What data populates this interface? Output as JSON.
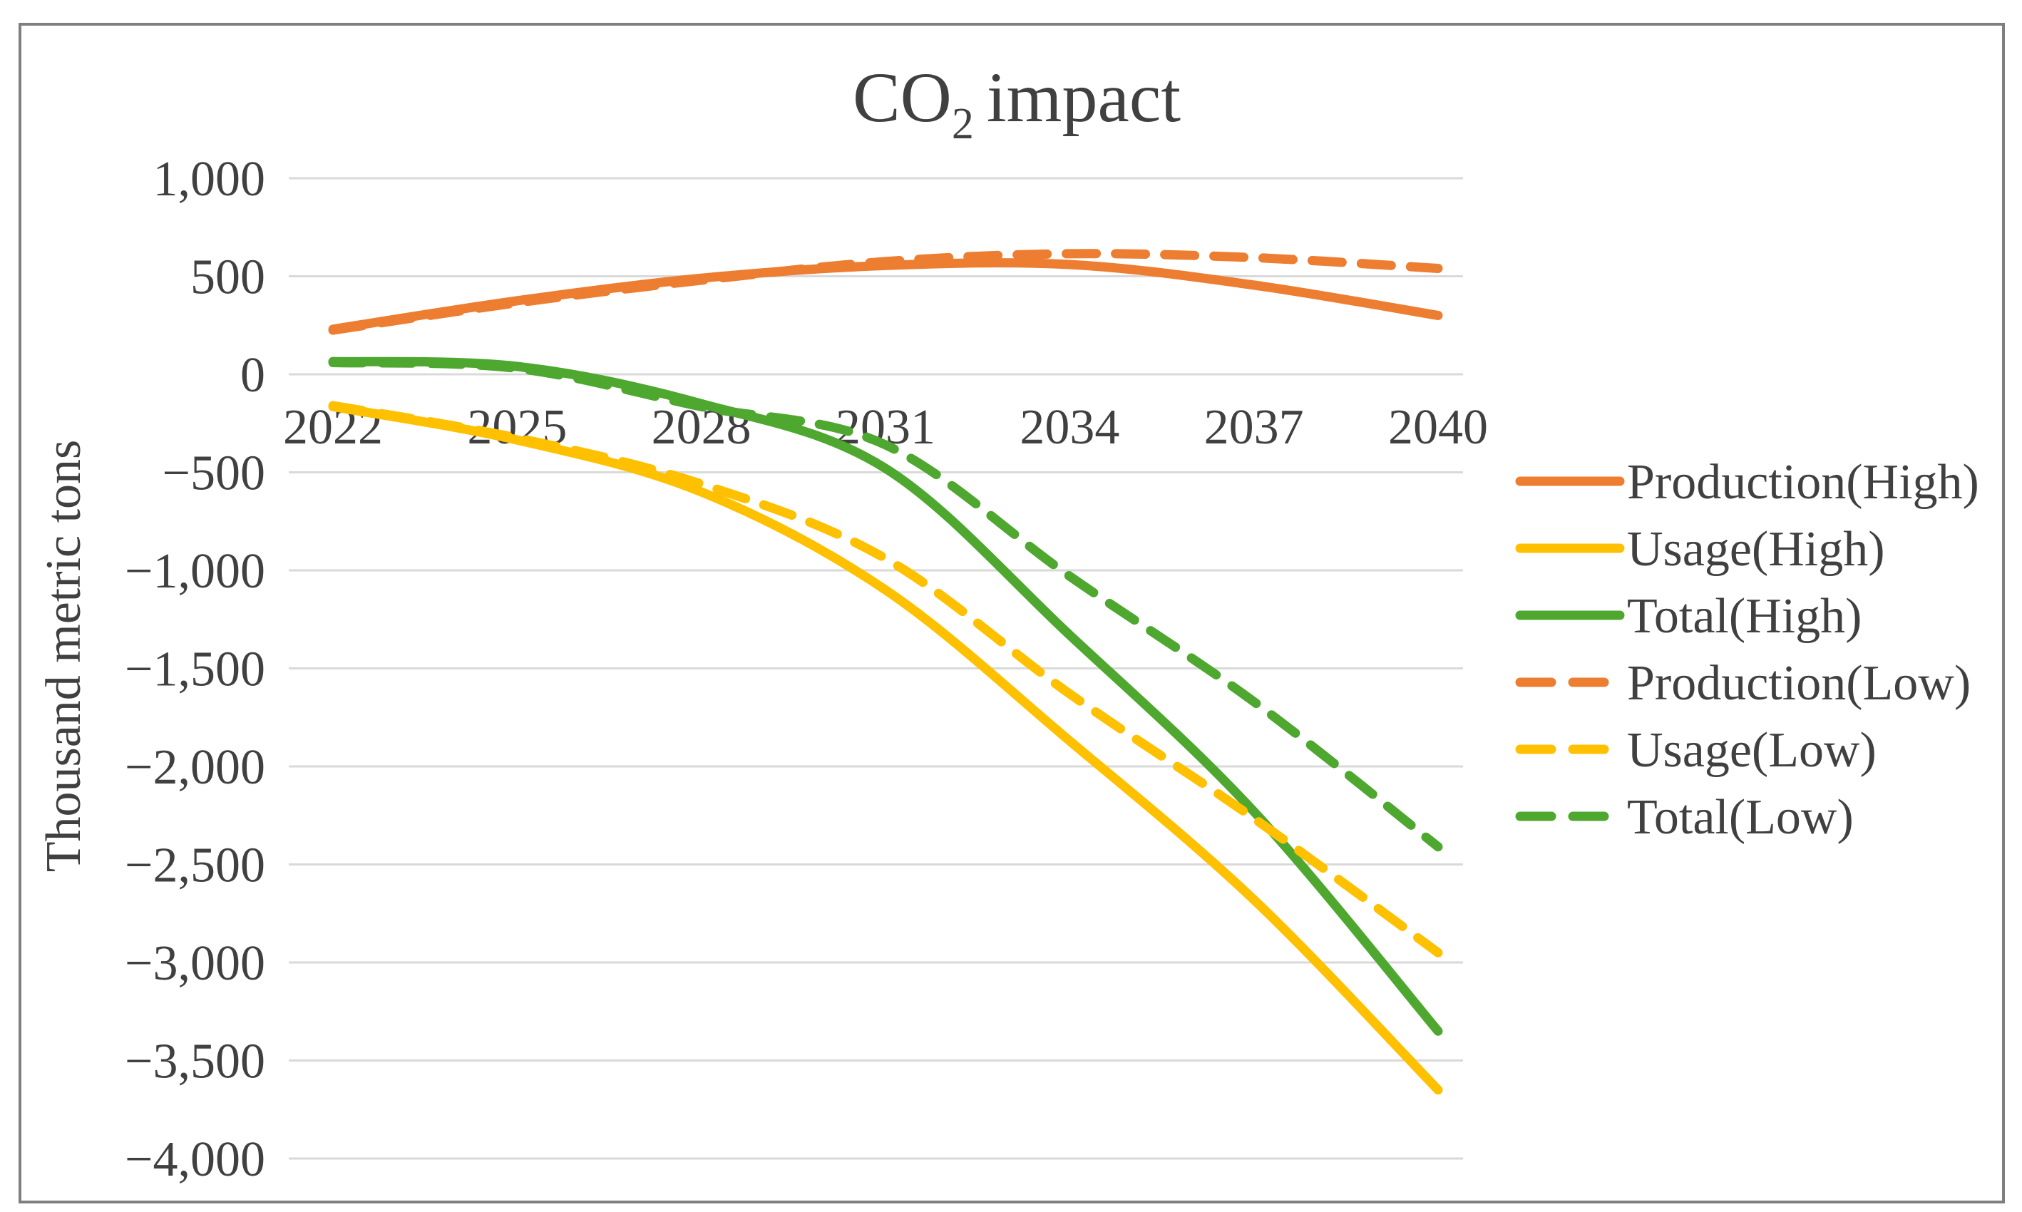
{
  "style": {
    "background": "#FFFFFF",
    "text_color": "#404040",
    "grid_color": "#D9D9D9",
    "border_color": "#7F7F7F",
    "orange": "#ED7D31",
    "yellow": "#FFC000",
    "green": "#4EA72E"
  },
  "chart_data": {
    "type": "line",
    "title": {
      "text": "CO2 impact",
      "prefix": "CO",
      "subscript": "2",
      "suffix": "impact"
    },
    "ylabel": "Thousand metric tons",
    "xlabel": "",
    "x": [
      2022,
      2025,
      2028,
      2031,
      2034,
      2037,
      2040
    ],
    "x_tick_labels": [
      "2022",
      "2025",
      "2028",
      "2031",
      "2034",
      "2037",
      "2040"
    ],
    "x_range": [
      2022,
      2040
    ],
    "y_ticks": [
      1000,
      500,
      0,
      -500,
      -1000,
      -1500,
      -2000,
      -2500,
      -3000,
      -3500,
      -4000
    ],
    "y_tick_labels": [
      "1,000",
      "500",
      "0",
      "−500",
      "−1,000",
      "−1,500",
      "−2,000",
      "−2,500",
      "−3,000",
      "−3,500",
      "−4,000"
    ],
    "ylim": [
      -4000,
      1000
    ],
    "grid": true,
    "smooth_lines": true,
    "legend_position": "right",
    "series": [
      {
        "name": "Production(High)",
        "color": "#ED7D31",
        "dash": false,
        "values": [
          230,
          375,
          490,
          555,
          560,
          455,
          300
        ]
      },
      {
        "name": "Usage(High)",
        "color": "#FFC000",
        "dash": false,
        "values": [
          -165,
          -335,
          -600,
          -1100,
          -1870,
          -2680,
          -3650
        ]
      },
      {
        "name": "Total(High)",
        "color": "#4EA72E",
        "dash": false,
        "values": [
          65,
          40,
          -150,
          -480,
          -1330,
          -2230,
          -3350
        ]
      },
      {
        "name": "Production(Low)",
        "color": "#ED7D31",
        "dash": true,
        "values": [
          225,
          365,
          480,
          575,
          615,
          595,
          540
        ]
      },
      {
        "name": "Usage(Low)",
        "color": "#FFC000",
        "dash": true,
        "values": [
          -160,
          -325,
          -560,
          -940,
          -1630,
          -2265,
          -2950
        ]
      },
      {
        "name": "Total(Low)",
        "color": "#4EA72E",
        "dash": true,
        "values": [
          60,
          30,
          -165,
          -360,
          -1030,
          -1670,
          -2410
        ]
      }
    ]
  }
}
